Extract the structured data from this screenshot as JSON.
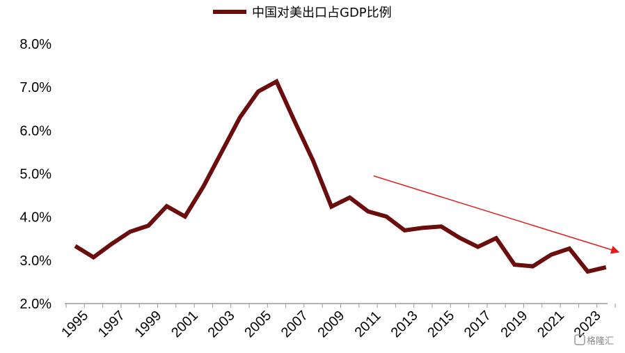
{
  "chart_data": {
    "type": "line",
    "title": "",
    "xlabel": "",
    "ylabel": "",
    "legend": {
      "position": "top-center"
    },
    "ylim": [
      2.0,
      8.0
    ],
    "y_ticks": [
      "2.0%",
      "3.0%",
      "4.0%",
      "5.0%",
      "6.0%",
      "7.0%",
      "8.0%"
    ],
    "x_tick_labels": [
      "1995",
      "1997",
      "1999",
      "2001",
      "2003",
      "2005",
      "2007",
      "2009",
      "2011",
      "2013",
      "2015",
      "2017",
      "2019",
      "2021",
      "2023"
    ],
    "x": [
      1995,
      1996,
      1997,
      1998,
      1999,
      2000,
      2001,
      2002,
      2003,
      2004,
      2005,
      2006,
      2007,
      2008,
      2009,
      2010,
      2011,
      2012,
      2013,
      2014,
      2015,
      2016,
      2017,
      2018,
      2019,
      2020,
      2021,
      2022,
      2023,
      2024
    ],
    "series": [
      {
        "name": "中国对美出口占GDP比例",
        "color": "#6b0d0d",
        "values": [
          3.33,
          3.07,
          3.38,
          3.66,
          3.8,
          4.25,
          4.01,
          4.7,
          5.5,
          6.3,
          6.9,
          7.13,
          6.2,
          5.3,
          4.24,
          4.45,
          4.13,
          4.01,
          3.69,
          3.75,
          3.78,
          3.52,
          3.31,
          3.51,
          2.9,
          2.86,
          3.13,
          3.27,
          2.74,
          2.84
        ]
      }
    ],
    "annotations": [
      {
        "type": "trend-arrow",
        "color": "#e31b1b",
        "from": {
          "x": 2011.3,
          "y": 4.95
        },
        "to": {
          "x": 2024.7,
          "y": 3.19
        }
      }
    ]
  },
  "watermark": {
    "text": "格隆汇"
  }
}
